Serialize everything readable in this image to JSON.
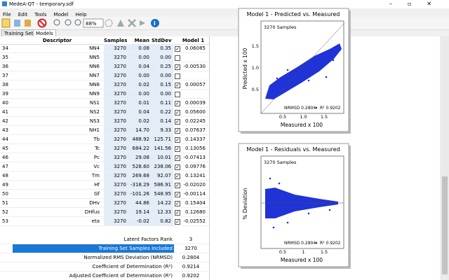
{
  "window": {
    "title": "MedeA-QT - temporary.sdf"
  },
  "menu": [
    "File",
    "Edit",
    "Tools",
    "Model",
    "Help"
  ],
  "toolbar": {
    "zoom": "88%"
  },
  "tabs": [
    "Training Set",
    "Models"
  ],
  "table": {
    "headers": [
      "Descriptor",
      "Samples",
      "Mean",
      "StdDev",
      "Model 1"
    ],
    "rows": [
      [
        "34",
        "NN4",
        "3270",
        "0.08",
        "0.35",
        true,
        "0.06085"
      ],
      [
        "35",
        "NN5",
        "3270",
        "0.00",
        "0.00",
        false,
        null
      ],
      [
        "36",
        "NN6",
        "3270",
        "0.04",
        "0.25",
        true,
        "-0.00530"
      ],
      [
        "37",
        "NN7",
        "3270",
        "0.00",
        "0.00",
        false,
        null
      ],
      [
        "38",
        "NN8",
        "3270",
        "0.02",
        "0.15",
        true,
        "0.00057"
      ],
      [
        "39",
        "NN9",
        "3270",
        "0.00",
        "0.00",
        false,
        null
      ],
      [
        "40",
        "NS1",
        "3270",
        "0.01",
        "0.11",
        true,
        "0.00039"
      ],
      [
        "41",
        "NS2",
        "3270",
        "0.04",
        "0.22",
        true,
        "0.05600"
      ],
      [
        "42",
        "NS3",
        "3270",
        "0.02",
        "0.14",
        true,
        "0.02245"
      ],
      [
        "43",
        "NH1",
        "3270",
        "14.70",
        "9.33",
        true,
        "0.07637"
      ],
      [
        "44",
        "Tb",
        "3270",
        "488.92",
        "125.71",
        true,
        "0.14337"
      ],
      [
        "45",
        "Tc",
        "3270",
        "684.22",
        "141.56",
        true,
        "0.13056"
      ],
      [
        "46",
        "Pc",
        "3270",
        "29.08",
        "10.01",
        true,
        "-0.07413"
      ],
      [
        "47",
        "Vc",
        "3270",
        "528.60",
        "238.06",
        true,
        "0.09776"
      ],
      [
        "48",
        "Tm",
        "3270",
        "269.68",
        "92.07",
        true,
        "0.13241"
      ],
      [
        "49",
        "Hf",
        "3270",
        "-318.29",
        "586.91",
        true,
        "-0.02020"
      ],
      [
        "50",
        "Gf",
        "3270",
        "-101.26",
        "548.95",
        true,
        "-0.00114"
      ],
      [
        "51",
        "DHv",
        "3270",
        "44.86",
        "14.22",
        true,
        "0.15404"
      ],
      [
        "52",
        "DHfus",
        "3270",
        "19.14",
        "12.33",
        true,
        "0.12680"
      ],
      [
        "53",
        "eta",
        "3270",
        "-0.02",
        "0.82",
        true,
        "-0.02552"
      ]
    ]
  },
  "summary": [
    [
      "Latent Factors Rank",
      "3"
    ],
    [
      "Training Set Samples Included",
      "3270"
    ],
    [
      "Normalized RMS Deviation (NRMSD)",
      "0.2804"
    ],
    [
      "Coefficient of Determination (R²)",
      "0.9214"
    ],
    [
      "Adjusted Coefficient of Determination (R²)",
      "0.9202"
    ]
  ],
  "selected_summary_row": 1,
  "plots": [
    {
      "title": "Model 1 - Predicted vs. Measured",
      "samples": "3270 Samples",
      "y_label": "Predicted x 100",
      "x_label": "Measured x 100",
      "xticks": [
        "0.5",
        "1.0",
        "1.5"
      ],
      "yticks": [
        "0.5",
        "1.0",
        "1.5"
      ],
      "nrmsd": "NRMSD 0.2804",
      "r2": "R² 0.9202"
    },
    {
      "title": "Model 1 - Residuals vs. Measured",
      "samples": "3270 Samples",
      "y_label": "% Deviation",
      "x_label": "Measured x 100",
      "xticks": [
        "0.5",
        "1",
        "1.5"
      ],
      "nrmsd": "NRMSD 0.2804",
      "r2": "R² 0.9202"
    }
  ]
}
